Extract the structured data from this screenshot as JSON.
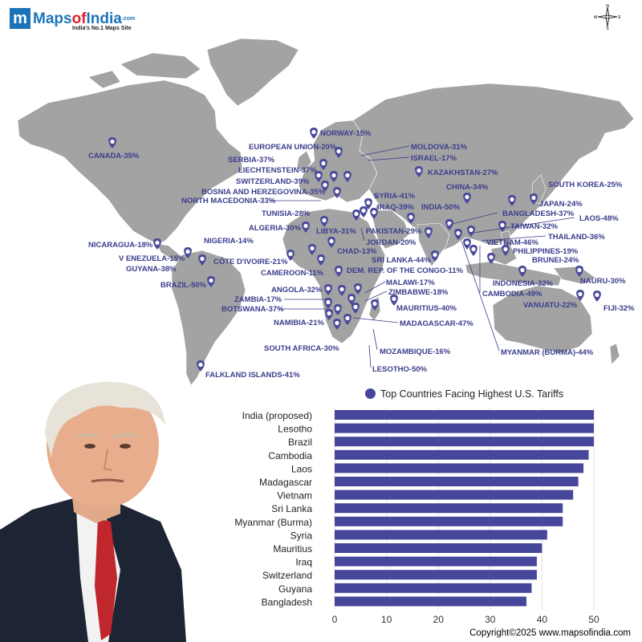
{
  "brand": {
    "logo_letter": "m",
    "name_part1": "Maps",
    "name_part2": "of",
    "name_part3": "India",
    "name_suffix": ".com",
    "tagline": "India's No.1 Maps Site"
  },
  "compass": {
    "n": "N",
    "s": "S",
    "e": "E",
    "w": "W"
  },
  "map_labels": [
    {
      "text": "CANADA-35%"
    },
    {
      "text": "NORWAY-15%"
    },
    {
      "text": "EUROPEAN UNION-20%"
    },
    {
      "text": "SERBIA-37%"
    },
    {
      "text": "LIECHTENSTEIN-37%"
    },
    {
      "text": "SWITZERLAND-39%"
    },
    {
      "text": "BOSNIA AND HERZEGOVINA-35%"
    },
    {
      "text": "NORTH MACEDONIA-33%"
    },
    {
      "text": "MOLDOVA-31%"
    },
    {
      "text": "ISRAEL-17%"
    },
    {
      "text": "KAZAKHSTAN-27%"
    },
    {
      "text": "CHINA-34%"
    },
    {
      "text": "SOUTH KOREA-25%"
    },
    {
      "text": "JAPAN-24%"
    },
    {
      "text": "SYRIA-41%"
    },
    {
      "text": "IRAQ-39%"
    },
    {
      "text": "INDIA-50%"
    },
    {
      "text": "BANGLADESH-37%"
    },
    {
      "text": "LAOS-48%"
    },
    {
      "text": "TUNISIA-28%"
    },
    {
      "text": "TAIWAN-32%"
    },
    {
      "text": "ALGERIA-30%"
    },
    {
      "text": "LIBYA-31%"
    },
    {
      "text": "PAKISTAN-29%"
    },
    {
      "text": "THAILAND-36%"
    },
    {
      "text": "NICARAGUA-18%"
    },
    {
      "text": "NIGERIA-14%"
    },
    {
      "text": "JORDAN-20%"
    },
    {
      "text": "VIETNAM-46%"
    },
    {
      "text": "PHILIPPINES-19%"
    },
    {
      "text": "V ENEZUELA-15%"
    },
    {
      "text": "CHAD-13%"
    },
    {
      "text": "BRUNEI-24%"
    },
    {
      "text": "CÔTE D'IVOIRE-21%"
    },
    {
      "text": "SRI LANKA-44%"
    },
    {
      "text": "GUYANA-38%"
    },
    {
      "text": "CAMEROON-11%"
    },
    {
      "text": "DEM. REP. OF  THE CONGO-11%"
    },
    {
      "text": "NAURU-30%"
    },
    {
      "text": "INDONESIA-32%"
    },
    {
      "text": "BRAZIL-50%"
    },
    {
      "text": "MALAWI-17%"
    },
    {
      "text": "CAMBODIA-49%"
    },
    {
      "text": "ANGOLA-32%"
    },
    {
      "text": "ZIMBABWE-18%"
    },
    {
      "text": "ZAMBIA-17%"
    },
    {
      "text": "VANUATU-22%"
    },
    {
      "text": "FIJI-32%"
    },
    {
      "text": "BOTSWANA-37%"
    },
    {
      "text": "MAURITIUS-40%"
    },
    {
      "text": "NAMIBIA-21%"
    },
    {
      "text": "MADAGASCAR-47%"
    },
    {
      "text": "SOUTH AFRICA-30%"
    },
    {
      "text": "MOZAMBIQUE-16%"
    },
    {
      "text": "MYANMAR (BURMA)-44%"
    },
    {
      "text": "LESOTHO-50%"
    },
    {
      "text": "FALKLAND ISLANDS-41%"
    }
  ],
  "colors": {
    "land": "#a3a3a3",
    "accent": "#3b3d8c",
    "bar": "#46469a",
    "pin": "#4a4a9c"
  },
  "chart_data": {
    "type": "bar",
    "orientation": "horizontal",
    "title": "Top Countries Facing Highest U.S. Tariffs",
    "series_name": "Top Countries Facing Highest U.S. Tariffs",
    "categories": [
      "India (proposed)",
      "Lesotho",
      "Brazil",
      "Cambodia",
      "Laos",
      "Madagascar",
      "Vietnam",
      "Sri Lanka",
      "Myanmar (Burma)",
      "Syria",
      "Mauritius",
      "Iraq",
      "Switzerland",
      "Guyana",
      "Bangladesh"
    ],
    "values": [
      50,
      50,
      50,
      49,
      48,
      47,
      46,
      44,
      44,
      41,
      40,
      39,
      39,
      38,
      37
    ],
    "xlim": [
      0,
      50
    ],
    "xticks": [
      "0",
      "10",
      "20",
      "30",
      "40",
      "50"
    ],
    "legend": "top"
  },
  "copyright": "Copyright©2025 www.mapsofindia.com"
}
